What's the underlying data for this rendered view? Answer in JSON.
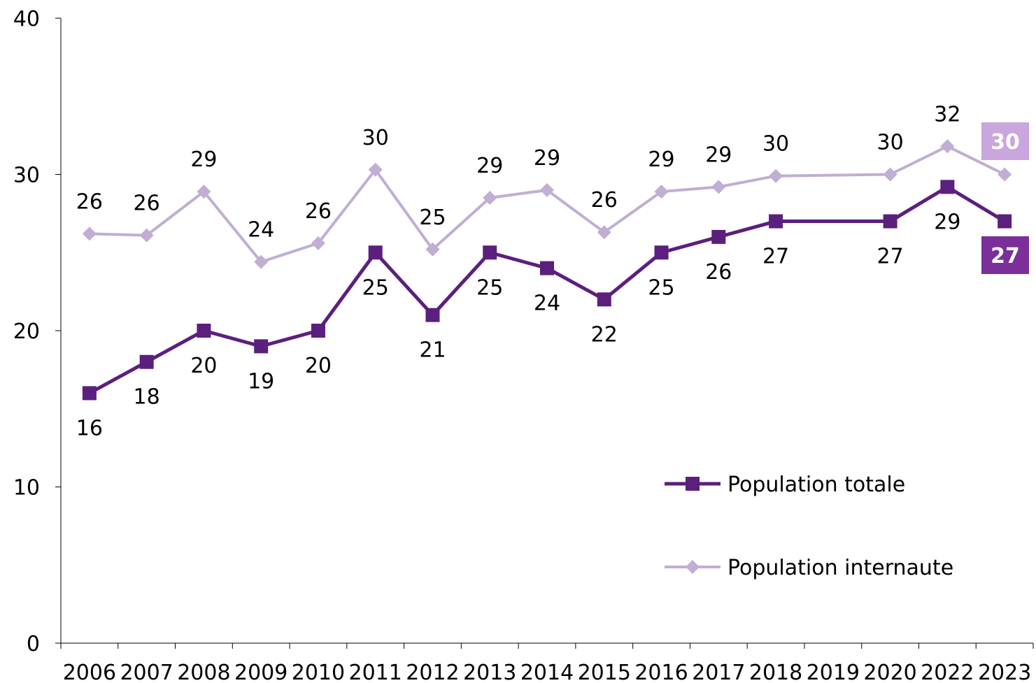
{
  "chart_data": {
    "type": "line",
    "title": "",
    "xlabel": "",
    "ylabel": "",
    "ylim": [
      0,
      40
    ],
    "y_ticks": [
      "0",
      "10",
      "20",
      "30",
      "40"
    ],
    "categories": [
      "2006",
      "2007",
      "2008",
      "2009",
      "2010",
      "2011",
      "2012",
      "2013",
      "2014",
      "2015",
      "2016",
      "2017",
      "2018",
      "2019",
      "2020",
      "2022",
      "2023"
    ],
    "grid": false,
    "legend_position": "lower-right",
    "series": [
      {
        "name": "Population totale",
        "color": "#5b1f7e",
        "marker": "square",
        "x": [
          "2006",
          "2007",
          "2008",
          "2009",
          "2010",
          "2011",
          "2012",
          "2013",
          "2014",
          "2015",
          "2016",
          "2017",
          "2018",
          "2020",
          "2022",
          "2023"
        ],
        "values": [
          16,
          18,
          20,
          19,
          20,
          25,
          21,
          25,
          24,
          22,
          25,
          26,
          27,
          27,
          29.2,
          27
        ],
        "labels": [
          "16",
          "18",
          "20",
          "19",
          "20",
          "25",
          "21",
          "25",
          "24",
          "22",
          "25",
          "26",
          "27",
          "27",
          "29",
          "27"
        ],
        "label_side": [
          "below",
          "below",
          "below",
          "below",
          "below",
          "below",
          "below",
          "below",
          "below",
          "below",
          "below",
          "below",
          "below",
          "below",
          "below",
          "callout"
        ]
      },
      {
        "name": "Population internaute",
        "color": "#c0aed3",
        "marker": "diamond",
        "x": [
          "2006",
          "2007",
          "2008",
          "2009",
          "2010",
          "2011",
          "2012",
          "2013",
          "2014",
          "2015",
          "2016",
          "2017",
          "2018",
          "2020",
          "2022",
          "2023"
        ],
        "values": [
          26.2,
          26.1,
          28.9,
          24.4,
          25.6,
          30.3,
          25.2,
          28.5,
          29.0,
          26.3,
          28.9,
          29.2,
          29.9,
          30.0,
          31.8,
          30.0
        ],
        "labels": [
          "26",
          "26",
          "29",
          "24",
          "26",
          "30",
          "25",
          "29",
          "29",
          "26",
          "29",
          "29",
          "30",
          "30",
          "32",
          "30"
        ],
        "label_side": [
          "above",
          "above",
          "above",
          "above",
          "above",
          "above",
          "above",
          "above",
          "above",
          "above",
          "above",
          "above",
          "above",
          "above",
          "above",
          "callout"
        ]
      }
    ],
    "callouts": {
      "fill_colors": [
        "#7a2f9b",
        "#c9a6dd"
      ]
    }
  }
}
